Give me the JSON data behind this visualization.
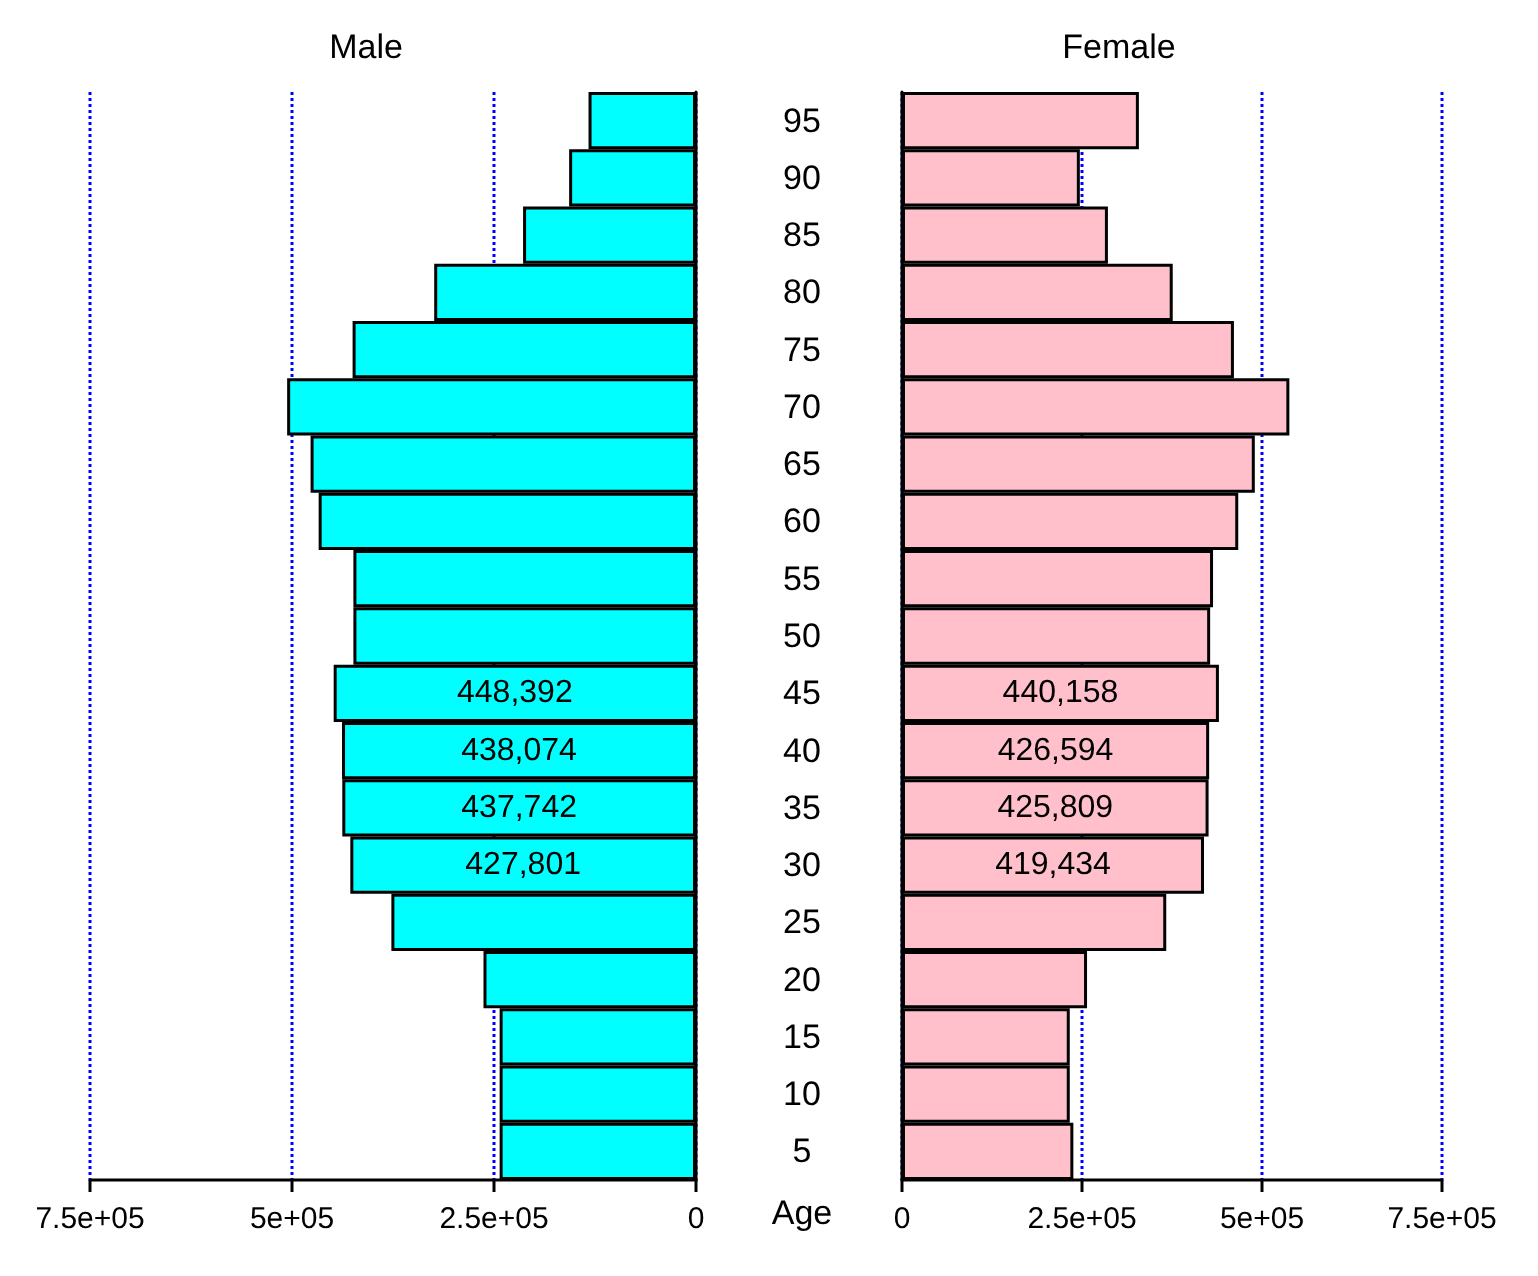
{
  "chart_data": [
    {
      "type": "bar",
      "orientation": "horizontal",
      "title": "Male",
      "categories": [
        "95",
        "90",
        "85",
        "80",
        "75",
        "70",
        "65",
        "60",
        "55",
        "50",
        "45",
        "40",
        "35",
        "30",
        "25",
        "20",
        "15",
        "10",
        "5"
      ],
      "values": [
        133000,
        157000,
        214000,
        324000,
        425000,
        506000,
        477000,
        467000,
        424000,
        424000,
        448392,
        438074,
        437742,
        427801,
        377000,
        263000,
        243000,
        243000,
        243000
      ],
      "value_labels": [
        null,
        null,
        null,
        null,
        null,
        null,
        null,
        null,
        null,
        null,
        "448,392",
        "438,074",
        "437,742",
        "427,801",
        null,
        null,
        null,
        null,
        null
      ],
      "color": "#00ffff",
      "xlim": [
        750000,
        0
      ],
      "xticks": [
        {
          "value": 750000,
          "label": "7.5e+05"
        },
        {
          "value": 500000,
          "label": "5e+05"
        },
        {
          "value": 250000,
          "label": "2.5e+05"
        },
        0
      ],
      "grid": "x",
      "tick_labels": "x"
    },
    {
      "type": "bar",
      "orientation": "horizontal",
      "title": "Female",
      "ylabel": "Age",
      "categories": [
        "95",
        "90",
        "85",
        "80",
        "75",
        "70",
        "65",
        "60",
        "55",
        "50",
        "45",
        "40",
        "35",
        "30",
        "25",
        "20",
        "15",
        "10",
        "5"
      ],
      "values": [
        329000,
        247000,
        286000,
        376000,
        461000,
        538000,
        490000,
        467000,
        432000,
        428000,
        440158,
        426594,
        425809,
        419434,
        367000,
        257000,
        233000,
        233000,
        238000
      ],
      "value_labels": [
        null,
        null,
        null,
        null,
        null,
        null,
        null,
        null,
        null,
        null,
        "440,158",
        "426,594",
        "425,809",
        "419,434",
        null,
        null,
        null,
        null,
        null
      ],
      "color": "#ffc0cb",
      "xlim": [
        0,
        750000
      ],
      "xticks": [
        0,
        {
          "value": 250000,
          "label": "2.5e+05"
        },
        {
          "value": 500000,
          "label": "5e+05"
        },
        {
          "value": 750000,
          "label": "7.5e+05"
        }
      ],
      "grid": "x"
    }
  ]
}
